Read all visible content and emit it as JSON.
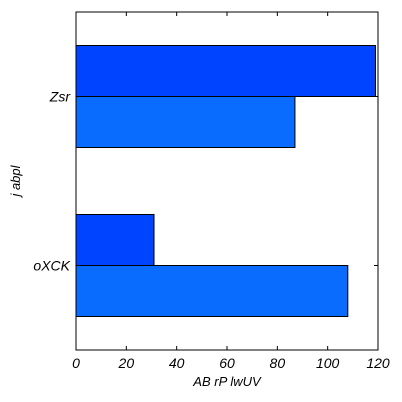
{
  "chart_data": {
    "type": "bar",
    "orientation": "horizontal",
    "categories": [
      "Zsr",
      "oXCK"
    ],
    "series": [
      {
        "values": [
          119,
          31
        ],
        "color": "#0044ff"
      },
      {
        "values": [
          87,
          108
        ],
        "color": "#0a6cff"
      }
    ],
    "xlabel": "AB  rP lwUV",
    "ylabel": "j abpl",
    "xlim": [
      0,
      120
    ],
    "xticks": [
      0,
      20,
      40,
      60,
      80,
      100,
      120
    ],
    "grid": false,
    "legend": "none"
  }
}
